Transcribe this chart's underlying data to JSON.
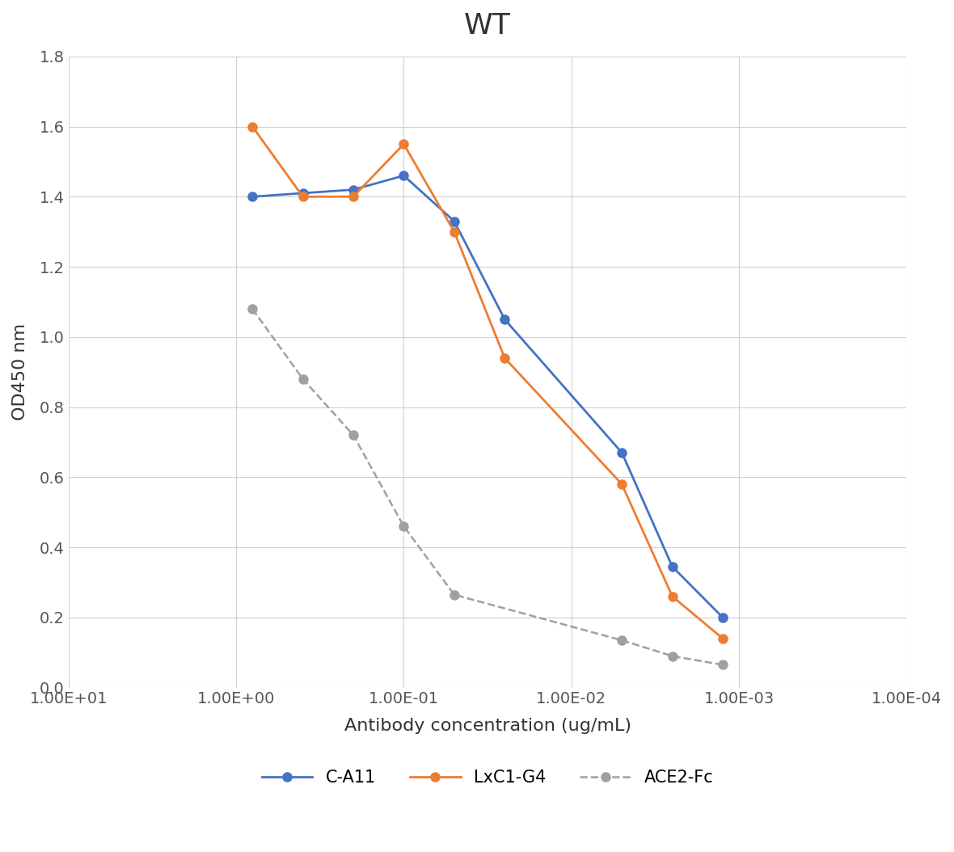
{
  "title": "WT",
  "xlabel": "Antibody concentration (ug/mL)",
  "ylabel": "OD450 nm",
  "title_fontsize": 26,
  "label_fontsize": 16,
  "tick_fontsize": 14,
  "legend_fontsize": 15,
  "ca11_x": [
    0.8,
    0.4,
    0.2,
    0.1,
    0.05,
    0.025,
    0.005,
    0.0025,
    0.00125
  ],
  "ca11_y": [
    1.4,
    1.41,
    1.42,
    1.46,
    1.33,
    1.05,
    0.67,
    0.345,
    0.2
  ],
  "lxc1_x": [
    0.8,
    0.4,
    0.2,
    0.1,
    0.05,
    0.025,
    0.005,
    0.0025,
    0.00125
  ],
  "lxc1_y": [
    1.6,
    1.4,
    1.4,
    1.55,
    1.3,
    0.94,
    0.58,
    0.26,
    0.14
  ],
  "ace2_x": [
    0.8,
    0.4,
    0.2,
    0.1,
    0.05,
    0.005,
    0.0025,
    0.00125
  ],
  "ace2_y": [
    1.08,
    0.88,
    0.72,
    0.46,
    0.265,
    0.135,
    0.09,
    0.065
  ],
  "ca11_color": "#4472c4",
  "lxc1_color": "#ed7d31",
  "ace2_color": "#a0a0a0",
  "xlim_left": 10.0,
  "xlim_right": 0.0001,
  "ylim_min": 0,
  "ylim_max": 1.8,
  "yticks": [
    0,
    0.2,
    0.4,
    0.6,
    0.8,
    1.0,
    1.2,
    1.4,
    1.6,
    1.8
  ],
  "xtick_vals": [
    10,
    1,
    0.1,
    0.01,
    0.001,
    0.0001
  ],
  "xtick_labels": [
    "1.00E+01",
    "1.00E+00",
    "1.00E-01",
    "1.00E-02",
    "1.00E-03",
    "1.00E-04"
  ],
  "background_color": "#ffffff",
  "grid_color": "#d0d0d0"
}
